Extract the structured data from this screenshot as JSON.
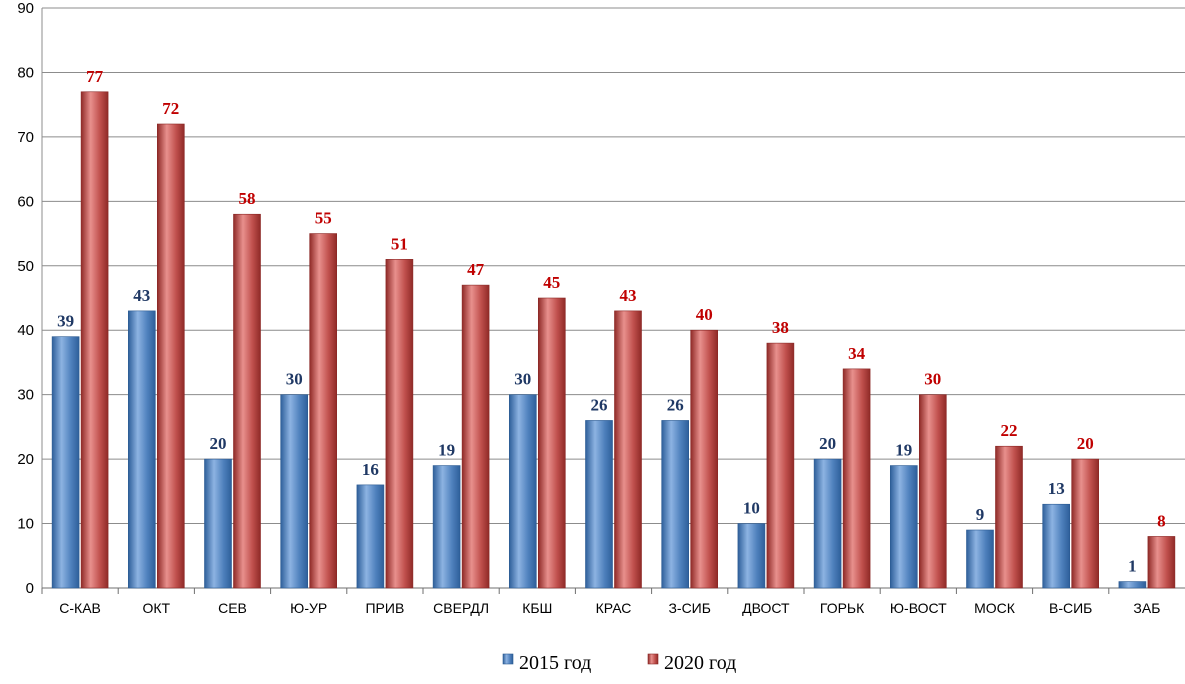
{
  "chart_data": {
    "type": "bar",
    "categories": [
      "С-КАВ",
      "ОКТ",
      "СЕВ",
      "Ю-УР",
      "ПРИВ",
      "СВЕРДЛ",
      "КБШ",
      "КРАС",
      "З-СИБ",
      "ДВОСТ",
      "ГОРЬК",
      "Ю-ВОСТ",
      "МОСК",
      "В-СИБ",
      "ЗАБ"
    ],
    "series": [
      {
        "name": "2015 год",
        "values": [
          39,
          43,
          20,
          30,
          16,
          19,
          30,
          26,
          26,
          10,
          20,
          19,
          9,
          13,
          1
        ],
        "color": "#4f81bd",
        "label_color": "#1f3864"
      },
      {
        "name": "2020 год",
        "values": [
          77,
          72,
          58,
          55,
          51,
          47,
          45,
          43,
          40,
          38,
          34,
          30,
          22,
          20,
          8
        ],
        "color": "#c0504d",
        "label_color": "#c00000"
      }
    ],
    "ylim": [
      0,
      90
    ],
    "yticks": [
      0,
      10,
      20,
      30,
      40,
      50,
      60,
      70,
      80,
      90
    ],
    "grid": true,
    "legend_position": "bottom"
  }
}
